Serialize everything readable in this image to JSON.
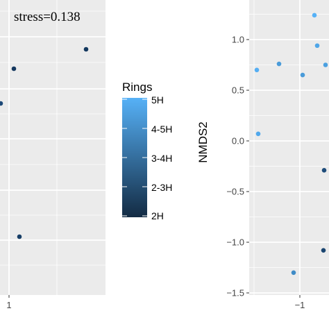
{
  "chart_data": [
    {
      "type": "scatter",
      "annotation": "stress=0.138",
      "x_tick_labels": [
        "1"
      ],
      "points": [
        {
          "id": "L1",
          "color": "#13385e"
        },
        {
          "id": "L2",
          "color": "#15385f"
        },
        {
          "id": "L3",
          "color": "#1d4a78"
        },
        {
          "id": "L4",
          "color": "#173e67"
        }
      ],
      "grid": true,
      "background": "#ebebeb"
    },
    {
      "type": "scatter",
      "ylabel": "NMDS2",
      "ylim": [
        -1.5,
        1.25
      ],
      "y_ticks": [
        {
          "value": 1.0,
          "label": "1.0"
        },
        {
          "value": 0.5,
          "label": "0.5"
        },
        {
          "value": 0.0,
          "label": "0.0"
        },
        {
          "value": -0.5,
          "label": "−0.5"
        },
        {
          "value": -1.0,
          "label": "−1.0"
        },
        {
          "value": -1.5,
          "label": "−1.5"
        }
      ],
      "x_tick_labels": [
        "−1"
      ],
      "points": [
        {
          "y": 1.24,
          "color": "#56b1f7"
        },
        {
          "y": 0.94,
          "color": "#4fa6e8"
        },
        {
          "y": 0.76,
          "color": "#4a9bd9"
        },
        {
          "y": 0.75,
          "color": "#4ba0e0"
        },
        {
          "y": 0.7,
          "color": "#55aef3"
        },
        {
          "y": 0.65,
          "color": "#4a9bd9"
        },
        {
          "y": 0.07,
          "color": "#51a8ec"
        },
        {
          "y": -0.29,
          "color": "#1e4c7a"
        },
        {
          "y": -1.08,
          "color": "#1a4570"
        },
        {
          "y": -1.3,
          "color": "#3f8bc7"
        }
      ],
      "grid": true,
      "background": "#ebebeb"
    }
  ],
  "legend": {
    "title": "Rings",
    "labels": [
      "5H",
      "4-5H",
      "3-4H",
      "2-3H",
      "2H"
    ],
    "gradient": {
      "top": "#56b1f7",
      "bottom": "#132b43"
    }
  }
}
